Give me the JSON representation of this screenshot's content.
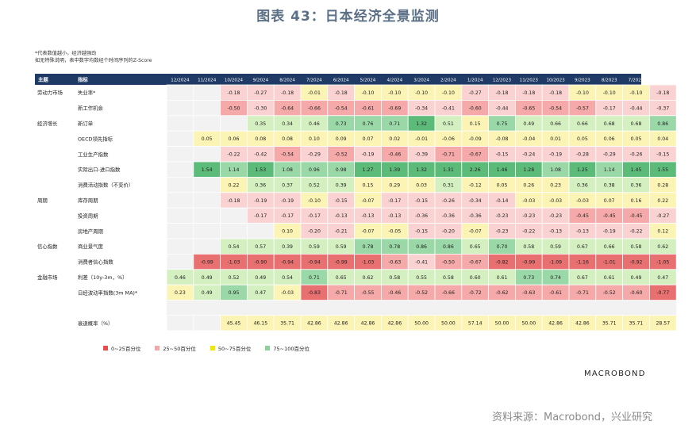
{
  "figure": {
    "title": "图表 43：日本经济全景监测",
    "note_line1": "*代表数值越小，经济越强劲",
    "note_line2": "如无特殊说明，表中数字均数经个时间序列的Z-Score",
    "brand": "MACROBOND",
    "source": "资料来源：Macrobond，兴业研究"
  },
  "chart_data": {
    "type": "heatmap",
    "header_topic": "主题",
    "header_indicator": "指标",
    "months": [
      "12/2024",
      "11/2024",
      "10/2024",
      "9/2024",
      "8/2024",
      "7/2024",
      "6/2024",
      "5/2024",
      "4/2024",
      "3/2024",
      "2/2024",
      "1/2024",
      "12/2023",
      "11/2023",
      "10/2023",
      "9/2023",
      "8/2023",
      "7/2023",
      "6/2023"
    ],
    "rows": [
      {
        "topic": "劳动力市场",
        "indicator": "失业率*",
        "values": [
          null,
          null,
          -0.18,
          -0.27,
          -0.18,
          -0.01,
          -0.18,
          -0.1,
          -0.1,
          -0.1,
          -0.1,
          -0.27,
          -0.18,
          -0.18,
          -0.18,
          -0.1,
          -0.1,
          -0.1,
          -0.18
        ]
      },
      {
        "topic": "",
        "indicator": "新工作机会",
        "values": [
          null,
          null,
          -0.5,
          -0.3,
          -0.64,
          -0.66,
          -0.54,
          -0.61,
          -0.69,
          -0.34,
          -0.41,
          -0.6,
          -0.44,
          -0.65,
          -0.54,
          -0.57,
          -0.17,
          -0.44,
          -0.37
        ]
      },
      {
        "topic": "经济增长",
        "indicator": "新订单",
        "values": [
          null,
          null,
          null,
          0.35,
          0.34,
          0.46,
          0.73,
          0.76,
          0.71,
          1.32,
          0.51,
          0.15,
          0.75,
          0.49,
          0.66,
          0.66,
          0.68,
          0.68,
          0.86
        ]
      },
      {
        "topic": "",
        "indicator": "OECD领先指标",
        "values": [
          null,
          0.05,
          0.06,
          0.08,
          0.08,
          0.1,
          0.09,
          0.07,
          0.02,
          -0.01,
          -0.06,
          -0.09,
          -0.08,
          -0.04,
          0.01,
          0.05,
          0.06,
          0.05,
          0.04
        ]
      },
      {
        "topic": "",
        "indicator": "工业生产指数",
        "values": [
          null,
          null,
          -0.22,
          -0.42,
          -0.54,
          -0.29,
          -0.52,
          -0.19,
          -0.46,
          -0.39,
          -0.71,
          -0.67,
          -0.15,
          -0.24,
          -0.19,
          -0.28,
          -0.29,
          -0.26,
          -0.15
        ]
      },
      {
        "topic": "",
        "indicator": "实际出口-进口指数",
        "values": [
          null,
          1.54,
          1.14,
          1.53,
          1.08,
          0.96,
          0.98,
          1.27,
          1.39,
          1.32,
          1.31,
          2.26,
          1.46,
          1.28,
          1.08,
          1.25,
          1.14,
          1.45,
          1.55
        ]
      },
      {
        "topic": "",
        "indicator": "消费活动指数（不变价）",
        "values": [
          null,
          null,
          0.22,
          0.36,
          0.37,
          0.52,
          0.39,
          0.15,
          0.29,
          0.03,
          0.31,
          -0.12,
          0.05,
          0.26,
          0.23,
          0.36,
          0.38,
          0.36,
          0.28
        ]
      },
      {
        "topic": "周期",
        "indicator": "库存周期",
        "values": [
          null,
          null,
          -0.18,
          -0.19,
          -0.19,
          -0.1,
          -0.15,
          -0.07,
          -0.17,
          -0.15,
          -0.26,
          -0.34,
          -0.14,
          -0.03,
          -0.03,
          -0.03,
          0.07,
          0.16,
          0.22
        ]
      },
      {
        "topic": "",
        "indicator": "投资周期",
        "values": [
          null,
          null,
          null,
          -0.17,
          -0.17,
          -0.17,
          -0.13,
          -0.13,
          -0.13,
          -0.36,
          -0.36,
          -0.36,
          -0.23,
          -0.23,
          -0.23,
          -0.45,
          -0.45,
          -0.45,
          -0.27
        ]
      },
      {
        "topic": "",
        "indicator": "房地产周期",
        "values": [
          null,
          null,
          null,
          null,
          0.1,
          -0.2,
          -0.21,
          -0.07,
          -0.05,
          -0.15,
          -0.2,
          -0.07,
          -0.23,
          -0.22,
          -0.13,
          -0.13,
          -0.19,
          -0.22,
          0.12
        ]
      },
      {
        "topic": "信心指数",
        "indicator": "商业景气度",
        "values": [
          null,
          null,
          0.54,
          0.57,
          0.39,
          0.59,
          0.59,
          0.78,
          0.78,
          0.86,
          0.86,
          0.65,
          0.7,
          0.58,
          0.59,
          0.67,
          0.66,
          0.58,
          0.62
        ]
      },
      {
        "topic": "",
        "indicator": "消费者信心指数",
        "values": [
          null,
          -0.99,
          -1.03,
          -0.9,
          -0.94,
          -0.94,
          -0.99,
          -1.03,
          -0.63,
          -0.41,
          -0.5,
          -0.67,
          -0.82,
          -0.99,
          -1.09,
          -1.16,
          -1.01,
          -0.92,
          -1.05
        ]
      },
      {
        "topic": "金融市场",
        "indicator": "利差（10y-3m，%）",
        "values": [
          0.46,
          0.49,
          0.52,
          0.49,
          0.54,
          0.71,
          0.65,
          0.62,
          0.58,
          0.55,
          0.58,
          0.6,
          0.61,
          0.73,
          0.74,
          0.67,
          0.61,
          0.49,
          0.47
        ]
      },
      {
        "topic": "",
        "indicator": "日经波动率指数(3m MA)*",
        "values": [
          0.23,
          0.49,
          0.95,
          0.47,
          -0.03,
          -0.83,
          -0.71,
          -0.55,
          -0.46,
          -0.52,
          -0.66,
          -0.72,
          -0.62,
          -0.63,
          -0.61,
          -0.71,
          -0.52,
          -0.6,
          -0.77
        ]
      }
    ],
    "summary": {
      "indicator": "衰退概率（%）",
      "values": [
        null,
        null,
        45.45,
        46.15,
        35.71,
        42.86,
        42.86,
        42.86,
        42.86,
        50.0,
        50.0,
        57.14,
        50.0,
        50.0,
        42.86,
        42.86,
        35.71,
        35.71,
        28.57
      ]
    },
    "legend": [
      {
        "label": "0~25百分位",
        "color": "#e64d4d"
      },
      {
        "label": "25~50百分位",
        "color": "#f4a7a7"
      },
      {
        "label": "50~75百分位",
        "color": "#f3e600"
      },
      {
        "label": "75~100百分位",
        "color": "#8fd19e"
      }
    ],
    "colors": {
      "header_bg": "#1f3a64",
      "header_text": "#ffffff",
      "deep_red": "#e87070",
      "red": "#f5a9a9",
      "light_red": "#fad2d2",
      "light_yellow": "#fbf4b4",
      "light_green": "#d4efc0",
      "green": "#9bd8a8",
      "deep_green": "#5dbb7a",
      "empty_cell": "#ffffff"
    }
  }
}
